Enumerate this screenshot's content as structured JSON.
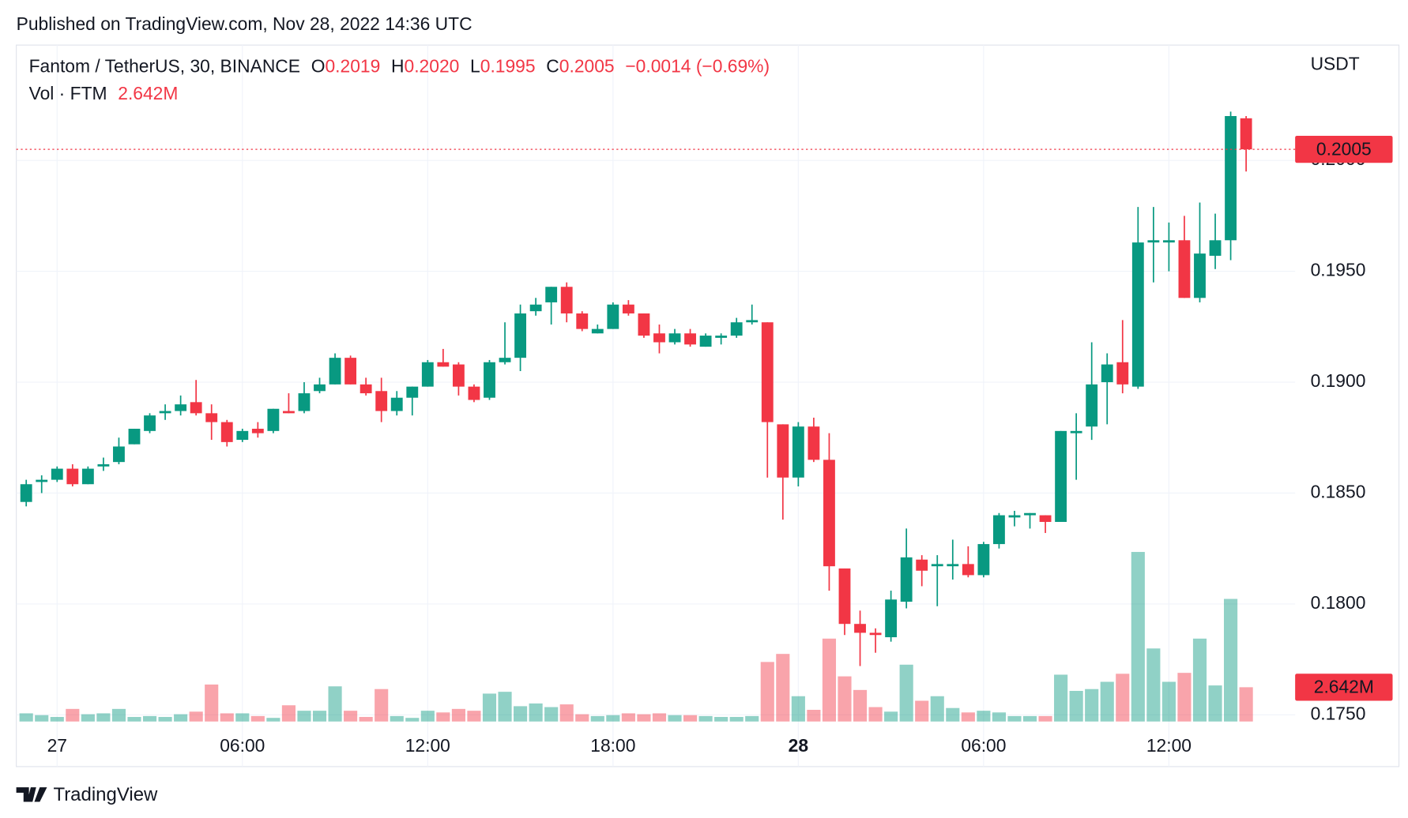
{
  "header": {
    "published": "Published on TradingView.com, Nov 28, 2022 14:36 UTC"
  },
  "footer": {
    "brand": "TradingView"
  },
  "chart_data": {
    "type": "candlestick",
    "symbol": "Fantom / TetherUS, 30, BINANCE",
    "ohlc_legend": [
      {
        "key": "O",
        "value": "0.2019"
      },
      {
        "key": "H",
        "value": "0.2020"
      },
      {
        "key": "L",
        "value": "0.1995"
      },
      {
        "key": "C",
        "value": "0.2005"
      }
    ],
    "change": "−0.0014 (−0.69%)",
    "volume_legend": {
      "name": "Vol · FTM",
      "value": "2.642M"
    },
    "y_axis_unit": "USDT",
    "last_price_label": "0.2005",
    "last_volume_label": "2.642M",
    "up_color": "#089981",
    "down_color": "#f23645",
    "ylim": [
      0.1747,
      0.2052
    ],
    "yticks": [
      {
        "value": 0.175,
        "label": "0.1750"
      },
      {
        "value": 0.18,
        "label": "0.1800"
      },
      {
        "value": 0.185,
        "label": "0.1850"
      },
      {
        "value": 0.19,
        "label": "0.1900"
      },
      {
        "value": 0.195,
        "label": "0.1950"
      },
      {
        "value": 0.2,
        "label": "0.2000"
      }
    ],
    "xticks": [
      {
        "value": 2,
        "label": "27"
      },
      {
        "value": 14,
        "label": "06:00"
      },
      {
        "value": 26,
        "label": "12:00"
      },
      {
        "value": 38,
        "label": "18:00"
      },
      {
        "value": 50,
        "label": "28"
      },
      {
        "value": 62,
        "label": "06:00"
      },
      {
        "value": 74,
        "label": "12:00"
      }
    ],
    "open": [
      0.1846,
      0.1855,
      0.1856,
      0.1861,
      0.1854,
      0.1862,
      0.1864,
      0.1872,
      0.1878,
      0.1886,
      0.1887,
      0.1891,
      0.1886,
      0.1882,
      0.1874,
      0.1879,
      0.1878,
      0.1887,
      0.1887,
      0.1896,
      0.1899,
      0.1911,
      0.1899,
      0.1896,
      0.1887,
      0.1893,
      0.1898,
      0.1909,
      0.1908,
      0.1898,
      0.1893,
      0.1909,
      0.1911,
      0.1932,
      0.1936,
      0.1943,
      0.1931,
      0.1922,
      0.1924,
      0.1935,
      0.1931,
      0.1922,
      0.1918,
      0.1922,
      0.1916,
      0.192,
      0.1921,
      0.1927,
      0.1927,
      0.1881,
      0.1857,
      0.188,
      0.1865,
      0.1816,
      0.1791,
      0.1787,
      0.1785,
      0.1801,
      0.182,
      0.1817,
      0.1817,
      0.1818,
      0.1813,
      0.1827,
      0.1839,
      0.184,
      0.184,
      0.1837,
      0.1877,
      0.188,
      0.19,
      0.1909,
      0.1898,
      0.1963,
      0.1963,
      0.1964,
      0.1938,
      0.1957,
      0.1964,
      0.2019
    ],
    "high": [
      0.1856,
      0.1858,
      0.1862,
      0.1863,
      0.1862,
      0.1866,
      0.1875,
      0.1879,
      0.1886,
      0.189,
      0.1894,
      0.1901,
      0.189,
      0.1883,
      0.1879,
      0.1882,
      0.1888,
      0.1895,
      0.19,
      0.1902,
      0.1913,
      0.1912,
      0.1902,
      0.1902,
      0.1896,
      0.1898,
      0.191,
      0.1915,
      0.1909,
      0.1899,
      0.191,
      0.1927,
      0.1935,
      0.1938,
      0.1943,
      0.1945,
      0.1932,
      0.1926,
      0.1936,
      0.1937,
      0.1931,
      0.1926,
      0.1924,
      0.1924,
      0.1922,
      0.1922,
      0.1929,
      0.1935,
      0.1927,
      0.1881,
      0.1882,
      0.1884,
      0.1877,
      0.1816,
      0.1797,
      0.1789,
      0.1806,
      0.1834,
      0.1822,
      0.1822,
      0.1829,
      0.1826,
      0.1828,
      0.1841,
      0.1842,
      0.1841,
      0.184,
      0.1878,
      0.1886,
      0.1918,
      0.1913,
      0.1928,
      0.1979,
      0.1979,
      0.1972,
      0.1975,
      0.1981,
      0.1976,
      0.2022,
      0.202
    ],
    "low": [
      0.1844,
      0.185,
      0.1855,
      0.1853,
      0.1854,
      0.186,
      0.1863,
      0.1872,
      0.1877,
      0.1883,
      0.1885,
      0.1885,
      0.1874,
      0.1871,
      0.1873,
      0.1875,
      0.1877,
      0.1886,
      0.1886,
      0.1895,
      0.1899,
      0.1899,
      0.1894,
      0.1882,
      0.1885,
      0.1885,
      0.1898,
      0.1907,
      0.1894,
      0.1891,
      0.1892,
      0.1908,
      0.1905,
      0.193,
      0.1926,
      0.1927,
      0.1923,
      0.1922,
      0.1924,
      0.193,
      0.192,
      0.1913,
      0.1917,
      0.1916,
      0.1916,
      0.1917,
      0.192,
      0.1926,
      0.1857,
      0.1838,
      0.1853,
      0.1864,
      0.1806,
      0.1786,
      0.1772,
      0.1778,
      0.1783,
      0.1798,
      0.1808,
      0.1799,
      0.1811,
      0.1812,
      0.1812,
      0.1825,
      0.1835,
      0.1834,
      0.1832,
      0.1837,
      0.1856,
      0.1874,
      0.1881,
      0.1895,
      0.1897,
      0.1945,
      0.195,
      0.1938,
      0.1936,
      0.1951,
      0.1955,
      0.1995
    ],
    "close": [
      0.1854,
      0.1856,
      0.1861,
      0.1854,
      0.1861,
      0.1863,
      0.1871,
      0.1879,
      0.1885,
      0.1887,
      0.189,
      0.1886,
      0.1882,
      0.1873,
      0.1878,
      0.1877,
      0.1888,
      0.1886,
      0.1895,
      0.1899,
      0.1911,
      0.1899,
      0.1895,
      0.1887,
      0.1893,
      0.1898,
      0.1909,
      0.1907,
      0.1898,
      0.1892,
      0.1909,
      0.1911,
      0.1931,
      0.1935,
      0.1943,
      0.1931,
      0.1924,
      0.1924,
      0.1935,
      0.1931,
      0.1921,
      0.1918,
      0.1922,
      0.1917,
      0.1921,
      0.1921,
      0.1927,
      0.1928,
      0.1882,
      0.1857,
      0.188,
      0.1865,
      0.1817,
      0.1791,
      0.1787,
      0.1786,
      0.1802,
      0.1821,
      0.1815,
      0.1818,
      0.1818,
      0.1813,
      0.1827,
      0.184,
      0.184,
      0.1841,
      0.1837,
      0.1878,
      0.1878,
      0.1899,
      0.1908,
      0.1899,
      0.1963,
      0.1964,
      0.1964,
      0.1938,
      0.1958,
      0.1964,
      0.202,
      0.2005
    ],
    "volume": [
      0.63,
      0.49,
      0.35,
      0.97,
      0.56,
      0.63,
      0.97,
      0.35,
      0.42,
      0.35,
      0.56,
      0.76,
      2.85,
      0.63,
      0.63,
      0.42,
      0.28,
      1.25,
      0.83,
      0.83,
      2.71,
      0.83,
      0.35,
      2.5,
      0.42,
      0.28,
      0.83,
      0.7,
      0.97,
      0.83,
      2.15,
      2.29,
      1.18,
      1.39,
      1.11,
      1.32,
      0.56,
      0.42,
      0.49,
      0.63,
      0.56,
      0.63,
      0.49,
      0.49,
      0.42,
      0.35,
      0.35,
      0.42,
      4.59,
      5.21,
      1.95,
      0.9,
      6.39,
      3.48,
      2.43,
      1.11,
      0.76,
      4.38,
      1.6,
      1.95,
      1.04,
      0.7,
      0.83,
      0.7,
      0.42,
      0.42,
      0.42,
      3.61,
      2.36,
      2.5,
      3.06,
      3.68,
      13.07,
      5.63,
      3.06,
      3.75,
      6.39,
      2.78,
      9.45,
      2.642
    ]
  }
}
